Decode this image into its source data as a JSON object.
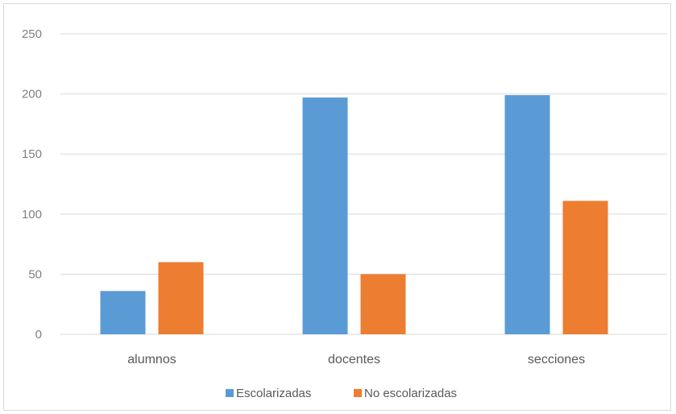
{
  "chart_data": {
    "type": "bar",
    "categories": [
      "alumnos",
      "docentes",
      "secciones"
    ],
    "series": [
      {
        "name": "Escolarizadas",
        "values": [
          36,
          197,
          199
        ],
        "color": "#5b9bd5"
      },
      {
        "name": "No escolarizadas",
        "values": [
          60,
          50,
          111
        ],
        "color": "#ed7d31"
      }
    ],
    "ylim": [
      0,
      250
    ],
    "yticks": [
      0,
      50,
      100,
      150,
      200,
      250
    ],
    "grid": true,
    "legend": "bottom"
  }
}
